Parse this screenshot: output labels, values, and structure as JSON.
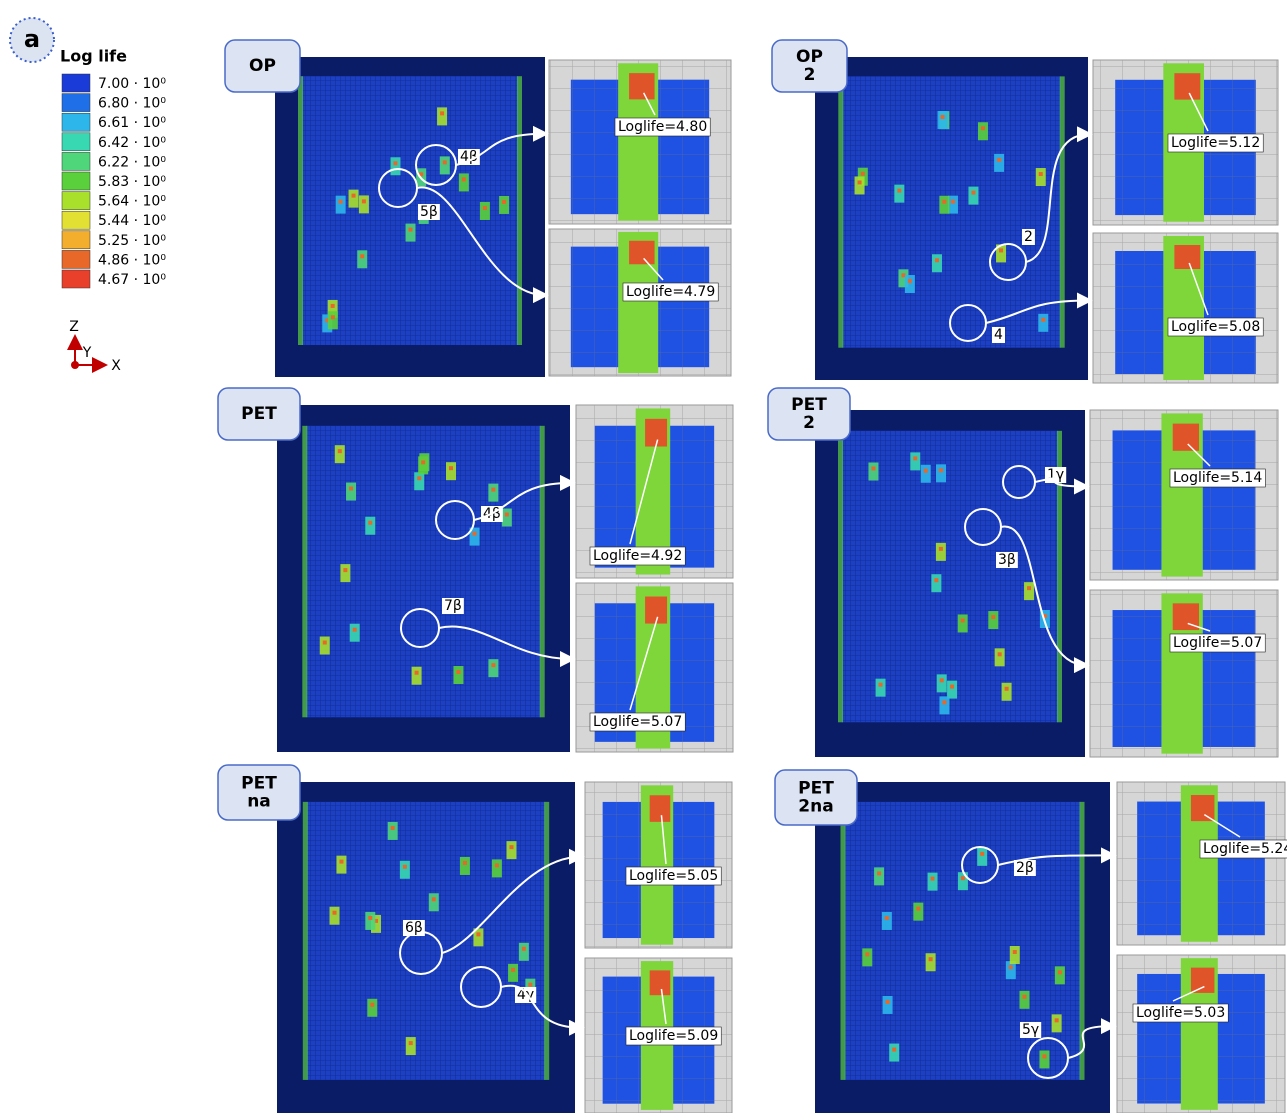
{
  "panel_label": "a",
  "legend": {
    "title": "Log life",
    "entries": [
      {
        "label": "7.00 · 10⁰",
        "color": "#1a3bd8"
      },
      {
        "label": "6.80 · 10⁰",
        "color": "#1e6fe8"
      },
      {
        "label": "6.61 · 10⁰",
        "color": "#2cb6ea"
      },
      {
        "label": "6.42 · 10⁰",
        "color": "#38d8b2"
      },
      {
        "label": "6.22 · 10⁰",
        "color": "#4fd67a"
      },
      {
        "label": "5.83 · 10⁰",
        "color": "#5ad03c"
      },
      {
        "label": "5.64 · 10⁰",
        "color": "#a8e02c"
      },
      {
        "label": "5.44 · 10⁰",
        "color": "#e2e032"
      },
      {
        "label": "5.25 · 10⁰",
        "color": "#f2ae2c"
      },
      {
        "label": "4.86 · 10⁰",
        "color": "#e8682a"
      },
      {
        "label": "4.67 · 10⁰",
        "color": "#e8402a"
      }
    ]
  },
  "axes": {
    "z": "Z",
    "y": "Y",
    "x": "X"
  },
  "panels": [
    {
      "tag": [
        "OP"
      ],
      "markers": [
        "4β",
        "5β"
      ],
      "insets": [
        "Loglife=4.80",
        "Loglife=4.79"
      ]
    },
    {
      "tag": [
        "OP",
        "2"
      ],
      "markers": [
        "2",
        "4"
      ],
      "insets": [
        "Loglife=5.12",
        "Loglife=5.08"
      ]
    },
    {
      "tag": [
        "PET"
      ],
      "markers": [
        "4β",
        "7β"
      ],
      "insets": [
        "Loglife=4.92",
        "Loglife=5.07"
      ]
    },
    {
      "tag": [
        "PET",
        "2"
      ],
      "markers": [
        "1γ",
        "3β"
      ],
      "insets": [
        "Loglife=5.14",
        "Loglife=5.07"
      ]
    },
    {
      "tag": [
        "PET",
        "na"
      ],
      "markers": [
        "6β",
        "4γ"
      ],
      "insets": [
        "Loglife=5.05",
        "Loglife=5.09"
      ]
    },
    {
      "tag": [
        "PET",
        "2na"
      ],
      "markers": [
        "2β",
        "5γ"
      ],
      "insets": [
        "Loglife=5.24",
        "Loglife=5.03"
      ]
    }
  ]
}
